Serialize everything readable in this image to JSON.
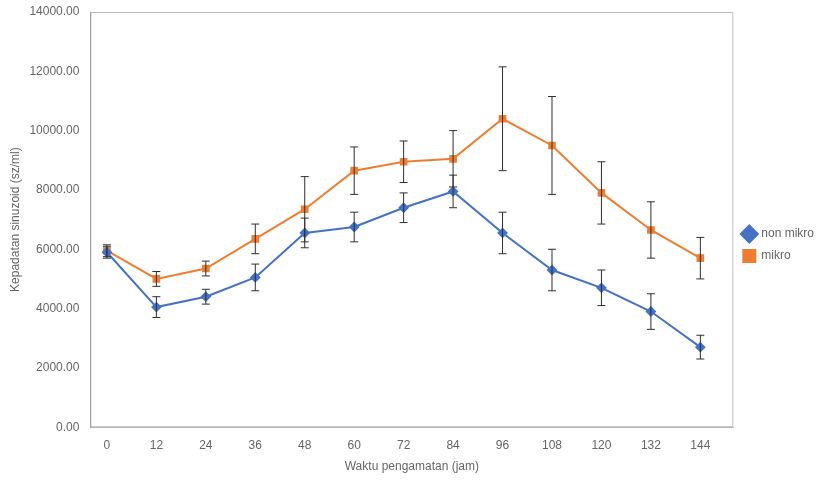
{
  "chart_data": {
    "type": "line",
    "xlabel": "Waktu pengamatan (jam)",
    "ylabel": "Kepadatan sinuzoid (sz/ml)",
    "x": [
      0,
      12,
      24,
      36,
      48,
      60,
      72,
      84,
      96,
      108,
      120,
      132,
      144
    ],
    "series": [
      {
        "name": "non mikro",
        "color": "#4472C4",
        "marker": "diamond",
        "values": [
          5900,
          4050,
          4400,
          5050,
          6550,
          6750,
          7400,
          7950,
          6550,
          5300,
          4700,
          3900,
          2700
        ],
        "errors": [
          200,
          350,
          250,
          450,
          500,
          500,
          500,
          550,
          700,
          700,
          600,
          600,
          400
        ]
      },
      {
        "name": "mikro",
        "color": "#ED7D31",
        "marker": "square",
        "values": [
          5950,
          5000,
          5350,
          6350,
          7350,
          8650,
          8950,
          9050,
          10400,
          9500,
          7900,
          6650,
          5700
        ],
        "errors": [
          200,
          250,
          250,
          500,
          1100,
          800,
          700,
          950,
          1750,
          1650,
          1050,
          950,
          700
        ]
      }
    ],
    "xlim": [
      -4,
      152
    ],
    "xticks": [
      0,
      12,
      24,
      36,
      48,
      60,
      72,
      84,
      96,
      108,
      120,
      132,
      144
    ],
    "ylim": [
      0,
      14000
    ],
    "yticks": [
      {
        "value": 0,
        "label": "0.00"
      },
      {
        "value": 2000,
        "label": "2000.00"
      },
      {
        "value": 4000,
        "label": "4000.00"
      },
      {
        "value": 6000,
        "label": "6000.00"
      },
      {
        "value": 8000,
        "label": "8000.00"
      },
      {
        "value": 10000,
        "label": "10000.00"
      },
      {
        "value": 12000,
        "label": "12000.00"
      },
      {
        "value": 14000,
        "label": "14000.00"
      }
    ],
    "grid": false,
    "legend": "right"
  }
}
